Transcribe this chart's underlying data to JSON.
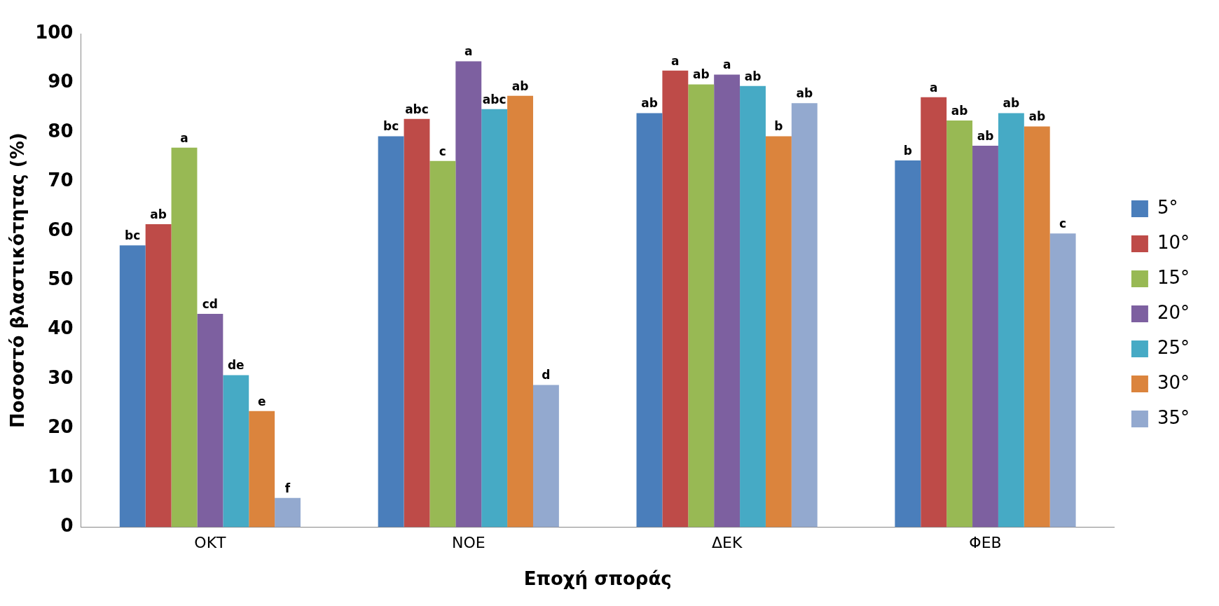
{
  "chart_data": {
    "type": "bar",
    "xlabel": "Εποχή σποράς",
    "ylabel": "Ποσοστό βλαστικότητας (%)",
    "categories": [
      "ΟΚΤ",
      "ΝΟΕ",
      "ΔΕΚ",
      "ΦΕΒ"
    ],
    "series": [
      {
        "name": "5°",
        "color": "#4a7ebb",
        "values": [
          57.1,
          79.2,
          83.9,
          74.3
        ],
        "value_labels": [
          "bc",
          "bc",
          "ab",
          "b"
        ]
      },
      {
        "name": "10°",
        "color": "#be4b48",
        "values": [
          61.4,
          82.7,
          92.5,
          87.1
        ],
        "value_labels": [
          "ab",
          "abc",
          "a",
          "a"
        ]
      },
      {
        "name": "15°",
        "color": "#98b954",
        "values": [
          76.9,
          74.2,
          89.7,
          82.4
        ],
        "value_labels": [
          "a",
          "c",
          "ab",
          "ab"
        ]
      },
      {
        "name": "20°",
        "color": "#7d60a0",
        "values": [
          43.2,
          94.4,
          91.7,
          77.3
        ],
        "value_labels": [
          "cd",
          "a",
          "a",
          "ab"
        ]
      },
      {
        "name": "25°",
        "color": "#46aac5",
        "values": [
          30.8,
          84.7,
          89.4,
          83.9
        ],
        "value_labels": [
          "de",
          "abc",
          "ab",
          "ab"
        ]
      },
      {
        "name": "30°",
        "color": "#db843d",
        "values": [
          23.5,
          87.4,
          79.2,
          81.2
        ],
        "value_labels": [
          "e",
          "ab",
          "b",
          "ab"
        ]
      },
      {
        "name": "35°",
        "color": "#93a9cf",
        "values": [
          5.9,
          28.8,
          85.9,
          59.5
        ],
        "value_labels": [
          "f",
          "d",
          "ab",
          "c"
        ]
      }
    ],
    "ylim": [
      0,
      100
    ],
    "yticks": [
      0,
      10,
      20,
      30,
      40,
      50,
      60,
      70,
      80,
      90,
      100
    ],
    "grid": false,
    "legend": "right"
  }
}
